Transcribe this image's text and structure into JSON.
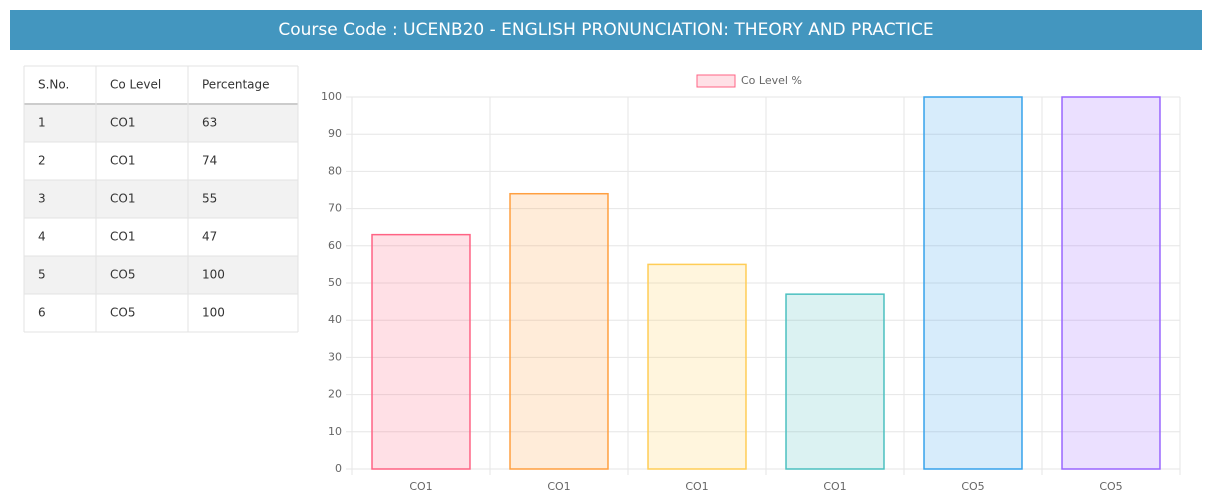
{
  "header": {
    "title": "Course Code : UCENB20 - ENGLISH PRONUNCIATION: THEORY AND PRACTICE"
  },
  "table": {
    "columns": [
      "S.No.",
      "Co Level",
      "Percentage"
    ],
    "rows": [
      [
        1,
        "CO1",
        63
      ],
      [
        2,
        "CO1",
        74
      ],
      [
        3,
        "CO1",
        55
      ],
      [
        4,
        "CO1",
        47
      ],
      [
        5,
        "CO5",
        100
      ],
      [
        6,
        "CO5",
        100
      ]
    ]
  },
  "chart_data": {
    "type": "bar",
    "categories": [
      "CO1",
      "CO1",
      "CO1",
      "CO1",
      "CO5",
      "CO5"
    ],
    "series": [
      {
        "name": "Co Level %",
        "colors": [
          "#ff6384",
          "#ff9f40",
          "#ffcd56",
          "#4bc0c0",
          "#36a2eb",
          "#9966ff"
        ],
        "values": [
          63,
          74,
          55,
          47,
          100,
          100
        ]
      }
    ],
    "ylim": [
      0,
      100
    ],
    "yticks": [
      0,
      10,
      20,
      30,
      40,
      50,
      60,
      70,
      80,
      90,
      100
    ],
    "grid": true,
    "legend": "top"
  }
}
